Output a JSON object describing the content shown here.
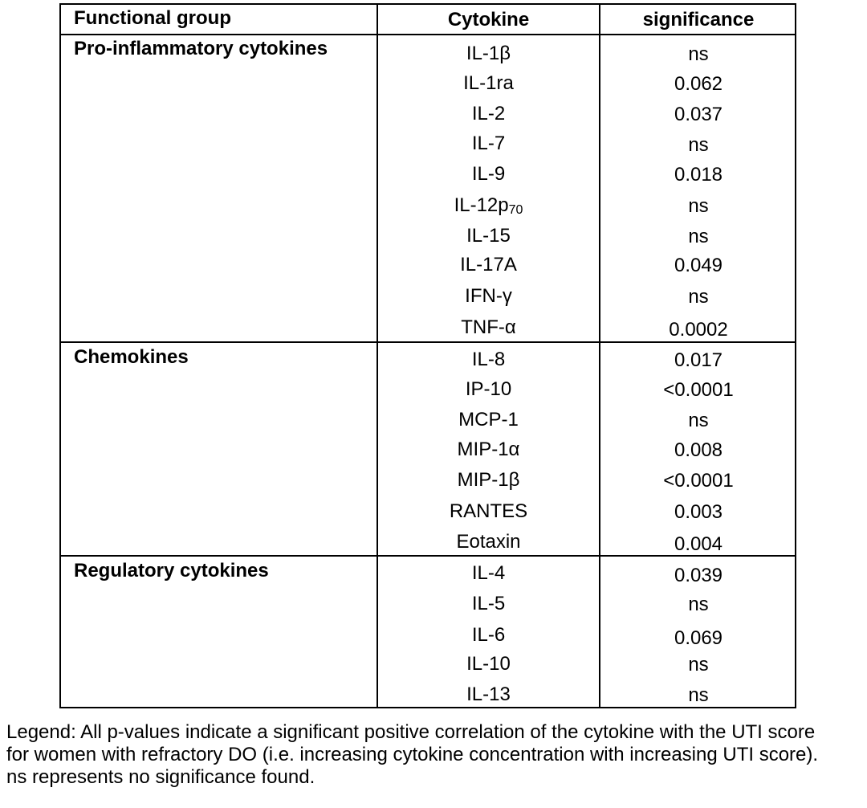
{
  "table": {
    "headers": {
      "group": "Functional group",
      "cytokine": "Cytokine",
      "significance": "significance"
    },
    "groups": [
      {
        "name": "Pro-inflammatory cytokines",
        "rows": [
          {
            "cytokine": "IL-1β",
            "significance": "ns"
          },
          {
            "cytokine": "IL-1ra",
            "significance": "0.062"
          },
          {
            "cytokine": "IL-2",
            "significance": "0.037"
          },
          {
            "cytokine": "IL-7",
            "significance": "ns"
          },
          {
            "cytokine": "IL-9",
            "significance": "0.018"
          },
          {
            "cytokine": "IL-12p",
            "cytokine_sub": "70",
            "significance": "ns"
          },
          {
            "cytokine": "IL-15",
            "significance": "ns"
          },
          {
            "cytokine": "IL-17A",
            "significance": "0.049"
          },
          {
            "cytokine": "IFN-γ",
            "significance": "ns"
          },
          {
            "cytokine": "TNF-α",
            "significance": "0.0002"
          }
        ]
      },
      {
        "name": "Chemokines",
        "rows": [
          {
            "cytokine": "IL-8",
            "significance": "0.017"
          },
          {
            "cytokine": "IP-10",
            "significance": "<0.0001"
          },
          {
            "cytokine": "MCP-1",
            "significance": "ns"
          },
          {
            "cytokine": "MIP-1α",
            "significance": "0.008"
          },
          {
            "cytokine": "MIP-1β",
            "significance": "<0.0001"
          },
          {
            "cytokine": "RANTES",
            "significance": "0.003"
          },
          {
            "cytokine": "Eotaxin",
            "significance": "0.004"
          }
        ]
      },
      {
        "name": "Regulatory cytokines",
        "rows": [
          {
            "cytokine": "IL-4",
            "significance": "0.039"
          },
          {
            "cytokine": "IL-5",
            "significance": "ns"
          },
          {
            "cytokine": "IL-6",
            "significance": "0.069"
          },
          {
            "cytokine": "IL-10",
            "significance": "ns"
          },
          {
            "cytokine": "IL-13",
            "significance": "ns"
          }
        ]
      }
    ]
  },
  "legend": {
    "line1": "Legend: All p-values indicate a significant positive correlation of the cytokine with the UTI score",
    "line2": "for women with refractory DO (i.e. increasing cytokine concentration with increasing UTI score).",
    "line3": "ns represents no significance found."
  }
}
